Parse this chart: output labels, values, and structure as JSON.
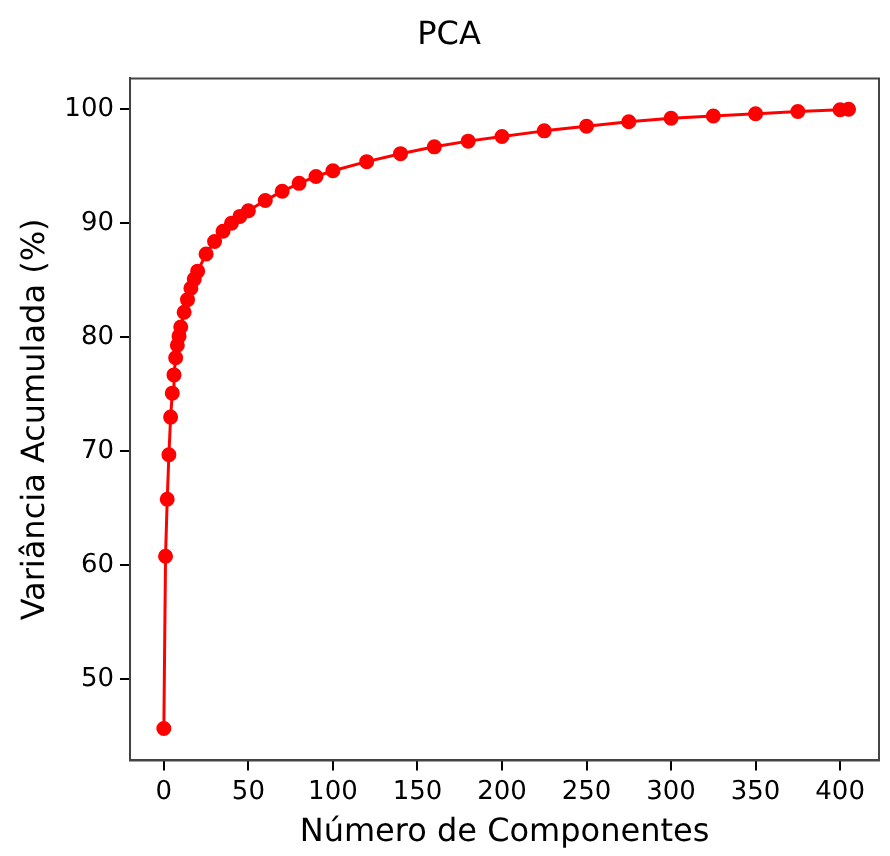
{
  "chart_data": {
    "type": "line",
    "title": "PCA",
    "xlabel": "Número de Componentes",
    "ylabel": "Variância Acumulada (%)",
    "xlim": [
      -20,
      423
    ],
    "ylim": [
      42.9,
      102.7
    ],
    "xticks": [
      0,
      50,
      100,
      150,
      200,
      250,
      300,
      350,
      400
    ],
    "yticks": [
      50,
      60,
      70,
      80,
      90,
      100
    ],
    "grid": false,
    "legend": false,
    "marker": "circle",
    "line_style": "solid",
    "series": [
      {
        "color": "#ff0000",
        "x": [
          0,
          1,
          2,
          3,
          4,
          5,
          6,
          7,
          8,
          9,
          10,
          12,
          14,
          16,
          18,
          20,
          25,
          30,
          35,
          40,
          45,
          50,
          60,
          70,
          80,
          90,
          100,
          120,
          140,
          160,
          180,
          200,
          225,
          250,
          275,
          300,
          325,
          350,
          375,
          400,
          405
        ],
        "values": [
          45.7,
          60.8,
          65.8,
          69.7,
          73.0,
          75.1,
          76.7,
          78.2,
          79.3,
          80.1,
          80.9,
          82.2,
          83.3,
          84.3,
          85.1,
          85.8,
          87.3,
          88.4,
          89.3,
          90.0,
          90.6,
          91.1,
          92.0,
          92.8,
          93.5,
          94.1,
          94.6,
          95.4,
          96.1,
          96.7,
          97.2,
          97.6,
          98.1,
          98.5,
          98.9,
          99.2,
          99.4,
          99.6,
          99.8,
          99.95,
          100.0
        ]
      }
    ]
  }
}
